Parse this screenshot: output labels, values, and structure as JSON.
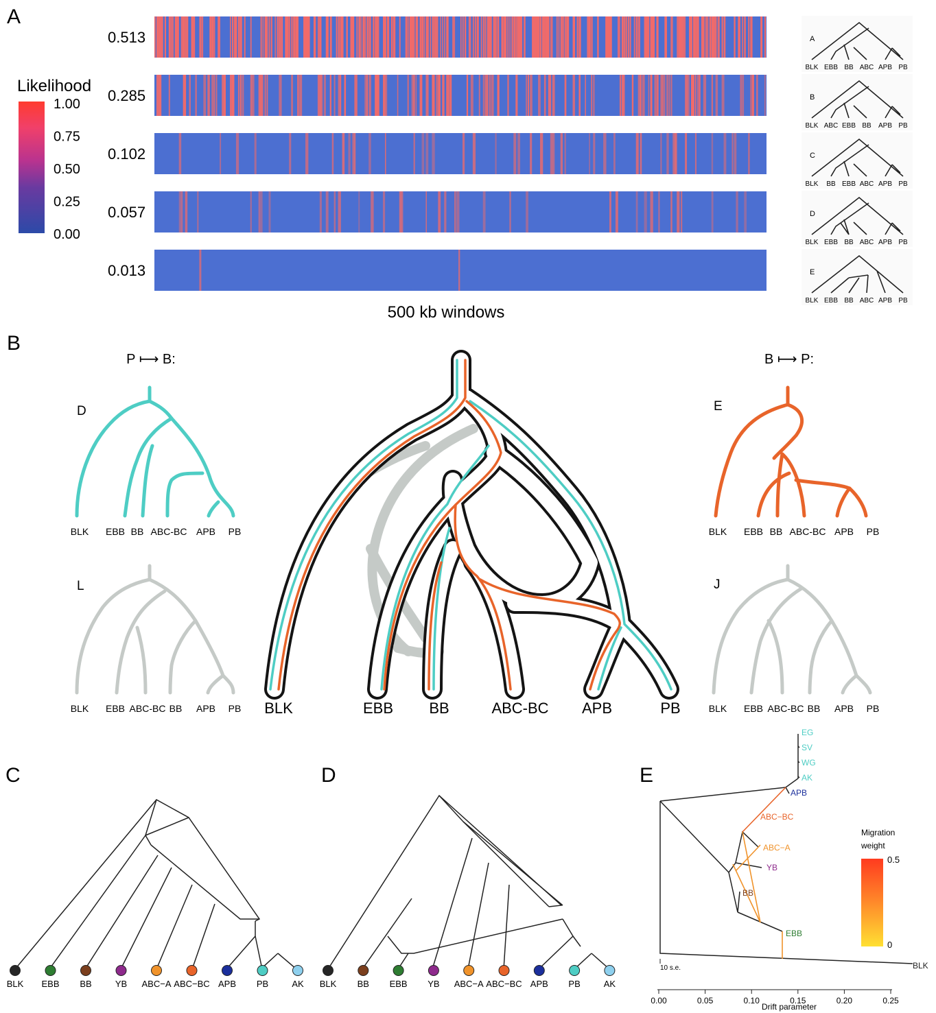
{
  "panel_letters": {
    "a": "A",
    "b": "B",
    "c": "C",
    "d": "D",
    "e": "E"
  },
  "colors": {
    "teal": "#4ecdc4",
    "orange": "#e8642a",
    "grey": "#c5cac7",
    "black": "#141414",
    "heat_low": "#4c6fd1",
    "heat_high": "#f06a6a"
  },
  "panelA": {
    "legend_title": "Likelihood",
    "legend_ticks": [
      "1.00",
      "0.75",
      "0.50",
      "0.25",
      "0.00"
    ],
    "xlabel": "500 kb windows",
    "rows": [
      {
        "value": "0.513",
        "density": 0.513
      },
      {
        "value": "0.285",
        "density": 0.285
      },
      {
        "value": "0.102",
        "density": 0.102
      },
      {
        "value": "0.057",
        "density": 0.057
      },
      {
        "value": "0.013",
        "density": 0.013
      }
    ],
    "trees": [
      {
        "label": "A",
        "tips": [
          "BLK",
          "EBB",
          "BB",
          "ABC",
          "APB",
          "PB"
        ]
      },
      {
        "label": "B",
        "tips": [
          "BLK",
          "ABC",
          "EBB",
          "BB",
          "APB",
          "PB"
        ]
      },
      {
        "label": "C",
        "tips": [
          "BLK",
          "BB",
          "EBB",
          "ABC",
          "APB",
          "PB"
        ]
      },
      {
        "label": "D",
        "tips": [
          "BLK",
          "EBB",
          "BB",
          "ABC",
          "APB",
          "PB"
        ]
      },
      {
        "label": "E",
        "tips": [
          "BLK",
          "EBB",
          "BB",
          "ABC",
          "APB",
          "PB"
        ]
      }
    ]
  },
  "panelB": {
    "left_heading": "P ⟼ B:",
    "right_heading": "B ⟼ P:",
    "tree_D": {
      "label": "D",
      "tips": [
        "BLK",
        "EBB",
        "BB",
        "ABC-BC",
        "APB",
        "PB"
      ]
    },
    "tree_L": {
      "label": "L",
      "tips": [
        "BLK",
        "EBB",
        "ABC-BC",
        "BB",
        "APB",
        "PB"
      ]
    },
    "tree_E": {
      "label": "E",
      "tips": [
        "BLK",
        "EBB",
        "BB",
        "ABC-BC",
        "APB",
        "PB"
      ]
    },
    "tree_J": {
      "label": "J",
      "tips": [
        "BLK",
        "EBB",
        "ABC-BC",
        "BB",
        "APB",
        "PB"
      ]
    },
    "center_tips": [
      "BLK",
      "EBB",
      "BB",
      "ABC-BC",
      "APB",
      "PB"
    ]
  },
  "panelC": {
    "tips": [
      {
        "name": "BLK",
        "color": "#262626"
      },
      {
        "name": "EBB",
        "color": "#2e7d32"
      },
      {
        "name": "BB",
        "color": "#7b3f1d"
      },
      {
        "name": "YB",
        "color": "#8e2a8c"
      },
      {
        "name": "ABC−A",
        "color": "#f0932b"
      },
      {
        "name": "ABC−BC",
        "color": "#e8642a"
      },
      {
        "name": "APB",
        "color": "#1b2f9c"
      },
      {
        "name": "PB",
        "color": "#4ecdc4"
      },
      {
        "name": "AK",
        "color": "#8ed0ee"
      }
    ]
  },
  "panelD": {
    "tips": [
      {
        "name": "BLK",
        "color": "#262626"
      },
      {
        "name": "BB",
        "color": "#7b3f1d"
      },
      {
        "name": "EBB",
        "color": "#2e7d32"
      },
      {
        "name": "YB",
        "color": "#8e2a8c"
      },
      {
        "name": "ABC−A",
        "color": "#f0932b"
      },
      {
        "name": "ABC−BC",
        "color": "#e8642a"
      },
      {
        "name": "APB",
        "color": "#1b2f9c"
      },
      {
        "name": "PB",
        "color": "#4ecdc4"
      },
      {
        "name": "AK",
        "color": "#8ed0ee"
      }
    ]
  },
  "panelE": {
    "xlabel": "Drift parameter",
    "ticks": [
      "0.00",
      "0.05",
      "0.10",
      "0.15",
      "0.20",
      "0.25"
    ],
    "scale_label": "10 s.e.",
    "legend_title_1": "Migration",
    "legend_title_2": "weight",
    "legend_max": "0.5",
    "legend_min": "0",
    "labels": [
      {
        "name": "EG",
        "color": "#4ecdc4"
      },
      {
        "name": "SV",
        "color": "#4ecdc4"
      },
      {
        "name": "WG",
        "color": "#4ecdc4"
      },
      {
        "name": "AK",
        "color": "#4ecdc4"
      },
      {
        "name": "APB",
        "color": "#1b2f9c"
      },
      {
        "name": "ABC−BC",
        "color": "#e8642a"
      },
      {
        "name": "ABC−A",
        "color": "#f0932b"
      },
      {
        "name": "YB",
        "color": "#8e2a8c"
      },
      {
        "name": "BB",
        "color": "#7b3f1d"
      },
      {
        "name": "EBB",
        "color": "#2e7d32"
      },
      {
        "name": "BLK",
        "color": "#222222"
      }
    ]
  }
}
